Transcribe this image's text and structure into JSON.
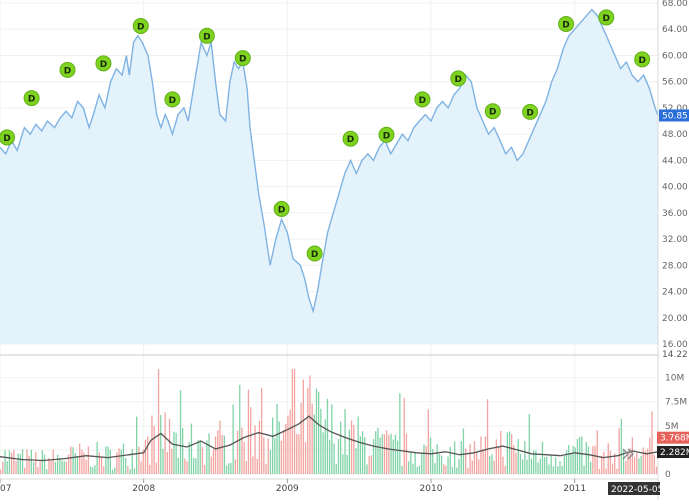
{
  "chart_data": {
    "type": "area",
    "price_axis": {
      "min": 16,
      "max": 68,
      "ticks": [
        68,
        64,
        60,
        56,
        52,
        48,
        44,
        40,
        36,
        32,
        28,
        24,
        20,
        16
      ],
      "tick_labels": [
        "68.00",
        "64.00",
        "60.00",
        "56.00",
        "52.00",
        "48.00",
        "44.00",
        "40.00",
        "36.00",
        "32.00",
        "28.00",
        "24.00",
        "20.00",
        "16.00"
      ],
      "cut_label": "14.22"
    },
    "time_axis": {
      "start": 2007.0,
      "end": 2011.58,
      "ticks": [
        2007,
        2008,
        2009,
        2010,
        2011
      ],
      "tick_labels": [
        "2007",
        "2008",
        "2009",
        "2010",
        "2011"
      ],
      "hover_date": "2022-05-05"
    },
    "price_series": {
      "last_value": 50.85,
      "last_label": "50.85",
      "line_color": "#7fb3e3",
      "fill_color": "#e4f2fb",
      "points": [
        [
          2007.0,
          46
        ],
        [
          2007.04,
          45
        ],
        [
          2007.08,
          47
        ],
        [
          2007.12,
          45.5
        ],
        [
          2007.17,
          49
        ],
        [
          2007.21,
          48
        ],
        [
          2007.25,
          49.5
        ],
        [
          2007.29,
          48.5
        ],
        [
          2007.33,
          50
        ],
        [
          2007.38,
          49
        ],
        [
          2007.42,
          50.5
        ],
        [
          2007.46,
          51.5
        ],
        [
          2007.5,
          50.5
        ],
        [
          2007.54,
          53
        ],
        [
          2007.58,
          52
        ],
        [
          2007.62,
          49
        ],
        [
          2007.65,
          51
        ],
        [
          2007.69,
          54
        ],
        [
          2007.73,
          52
        ],
        [
          2007.77,
          56
        ],
        [
          2007.81,
          58
        ],
        [
          2007.85,
          57
        ],
        [
          2007.88,
          60
        ],
        [
          2007.9,
          57
        ],
        [
          2007.93,
          62
        ],
        [
          2007.96,
          63
        ],
        [
          2007.99,
          62
        ],
        [
          2008.03,
          60
        ],
        [
          2008.06,
          56
        ],
        [
          2008.09,
          51
        ],
        [
          2008.12,
          49
        ],
        [
          2008.15,
          51
        ],
        [
          2008.17,
          50
        ],
        [
          2008.2,
          48
        ],
        [
          2008.24,
          51
        ],
        [
          2008.28,
          52
        ],
        [
          2008.31,
          50
        ],
        [
          2008.34,
          54
        ],
        [
          2008.37,
          58
        ],
        [
          2008.4,
          62
        ],
        [
          2008.44,
          60
        ],
        [
          2008.47,
          62
        ],
        [
          2008.5,
          56
        ],
        [
          2008.53,
          51
        ],
        [
          2008.57,
          50
        ],
        [
          2008.6,
          56
        ],
        [
          2008.63,
          59
        ],
        [
          2008.66,
          58
        ],
        [
          2008.69,
          59
        ],
        [
          2008.72,
          55
        ],
        [
          2008.74,
          49
        ],
        [
          2008.77,
          44
        ],
        [
          2008.8,
          39
        ],
        [
          2008.84,
          34
        ],
        [
          2008.88,
          28
        ],
        [
          2008.92,
          32
        ],
        [
          2008.96,
          35
        ],
        [
          2009.0,
          33
        ],
        [
          2009.04,
          29
        ],
        [
          2009.09,
          28
        ],
        [
          2009.12,
          26
        ],
        [
          2009.15,
          23
        ],
        [
          2009.18,
          21
        ],
        [
          2009.21,
          24
        ],
        [
          2009.24,
          28
        ],
        [
          2009.28,
          33
        ],
        [
          2009.32,
          36
        ],
        [
          2009.36,
          39
        ],
        [
          2009.4,
          42
        ],
        [
          2009.44,
          44
        ],
        [
          2009.48,
          42
        ],
        [
          2009.52,
          44
        ],
        [
          2009.56,
          45
        ],
        [
          2009.6,
          44
        ],
        [
          2009.64,
          46
        ],
        [
          2009.68,
          47
        ],
        [
          2009.72,
          45
        ],
        [
          2009.76,
          46.5
        ],
        [
          2009.8,
          48
        ],
        [
          2009.84,
          47
        ],
        [
          2009.88,
          49
        ],
        [
          2009.92,
          50
        ],
        [
          2009.96,
          51
        ],
        [
          2010.0,
          50
        ],
        [
          2010.04,
          52
        ],
        [
          2010.08,
          53
        ],
        [
          2010.12,
          52
        ],
        [
          2010.16,
          54
        ],
        [
          2010.2,
          55
        ],
        [
          2010.24,
          57
        ],
        [
          2010.28,
          56
        ],
        [
          2010.32,
          52
        ],
        [
          2010.36,
          50
        ],
        [
          2010.4,
          48
        ],
        [
          2010.44,
          49
        ],
        [
          2010.48,
          47
        ],
        [
          2010.52,
          45
        ],
        [
          2010.56,
          46
        ],
        [
          2010.6,
          44
        ],
        [
          2010.64,
          45
        ],
        [
          2010.68,
          47
        ],
        [
          2010.72,
          49
        ],
        [
          2010.76,
          51
        ],
        [
          2010.8,
          53
        ],
        [
          2010.84,
          56
        ],
        [
          2010.88,
          58
        ],
        [
          2010.92,
          61
        ],
        [
          2010.96,
          63
        ],
        [
          2011.0,
          64
        ],
        [
          2011.04,
          65
        ],
        [
          2011.08,
          66
        ],
        [
          2011.12,
          67
        ],
        [
          2011.16,
          66
        ],
        [
          2011.2,
          64
        ],
        [
          2011.24,
          62
        ],
        [
          2011.28,
          60
        ],
        [
          2011.32,
          58
        ],
        [
          2011.36,
          59
        ],
        [
          2011.4,
          57
        ],
        [
          2011.44,
          56
        ],
        [
          2011.48,
          57
        ],
        [
          2011.52,
          55
        ],
        [
          2011.56,
          52
        ],
        [
          2011.58,
          50.85
        ]
      ]
    },
    "dividend_markers": {
      "label": "D",
      "color": "#7ed321",
      "points": [
        [
          2007.0,
          47.5
        ],
        [
          2007.22,
          53.5
        ],
        [
          2007.47,
          57.8
        ],
        [
          2007.72,
          58.8
        ],
        [
          2007.98,
          64.5
        ],
        [
          2008.2,
          53.3
        ],
        [
          2008.44,
          63.0
        ],
        [
          2008.69,
          59.6
        ],
        [
          2008.96,
          36.6
        ],
        [
          2009.19,
          29.8
        ],
        [
          2009.44,
          47.3
        ],
        [
          2009.69,
          47.9
        ],
        [
          2009.94,
          53.3
        ],
        [
          2010.19,
          56.5
        ],
        [
          2010.43,
          51.5
        ],
        [
          2010.69,
          51.4
        ],
        [
          2010.94,
          64.8
        ],
        [
          2011.22,
          65.8
        ],
        [
          2011.47,
          59.4
        ]
      ]
    },
    "volume_axis": {
      "min": 0,
      "max": 11000000,
      "ticks": [
        0,
        2500000,
        5000000,
        7500000,
        10000000
      ],
      "tick_labels": [
        "0",
        "2.5M",
        "5M",
        "7.5M",
        "10M"
      ]
    },
    "volume_series": {
      "up_color": "#7fd3a6",
      "down_color": "#f2a4a0",
      "average_color": "#555555",
      "current_label": "3.768M",
      "average_label": "2.282M",
      "current_value": 3768000,
      "average_value": 2282000,
      "average_points": [
        [
          2007.0,
          1.8
        ],
        [
          2007.15,
          1.5
        ],
        [
          2007.3,
          1.4
        ],
        [
          2007.45,
          1.6
        ],
        [
          2007.6,
          1.9
        ],
        [
          2007.75,
          1.7
        ],
        [
          2007.9,
          2.0
        ],
        [
          2008.0,
          2.2
        ],
        [
          2008.05,
          3.5
        ],
        [
          2008.12,
          4.2
        ],
        [
          2008.2,
          3.1
        ],
        [
          2008.3,
          2.8
        ],
        [
          2008.4,
          3.4
        ],
        [
          2008.5,
          2.6
        ],
        [
          2008.6,
          3.0
        ],
        [
          2008.7,
          3.8
        ],
        [
          2008.8,
          4.3
        ],
        [
          2008.9,
          3.9
        ],
        [
          2009.0,
          4.6
        ],
        [
          2009.08,
          5.2
        ],
        [
          2009.15,
          6.0
        ],
        [
          2009.22,
          5.1
        ],
        [
          2009.3,
          4.4
        ],
        [
          2009.4,
          3.8
        ],
        [
          2009.5,
          3.3
        ],
        [
          2009.6,
          2.9
        ],
        [
          2009.7,
          2.6
        ],
        [
          2009.8,
          2.4
        ],
        [
          2009.9,
          2.2
        ],
        [
          2010.0,
          2.1
        ],
        [
          2010.1,
          2.3
        ],
        [
          2010.2,
          2.0
        ],
        [
          2010.3,
          2.2
        ],
        [
          2010.4,
          2.6
        ],
        [
          2010.5,
          2.9
        ],
        [
          2010.6,
          2.5
        ],
        [
          2010.7,
          2.1
        ],
        [
          2010.8,
          2.0
        ],
        [
          2010.9,
          1.9
        ],
        [
          2011.0,
          2.2
        ],
        [
          2011.1,
          2.0
        ],
        [
          2011.2,
          1.7
        ],
        [
          2011.3,
          1.9
        ],
        [
          2011.4,
          2.4
        ],
        [
          2011.5,
          2.1
        ],
        [
          2011.58,
          2.3
        ]
      ]
    },
    "grid": true,
    "legend": "none"
  }
}
